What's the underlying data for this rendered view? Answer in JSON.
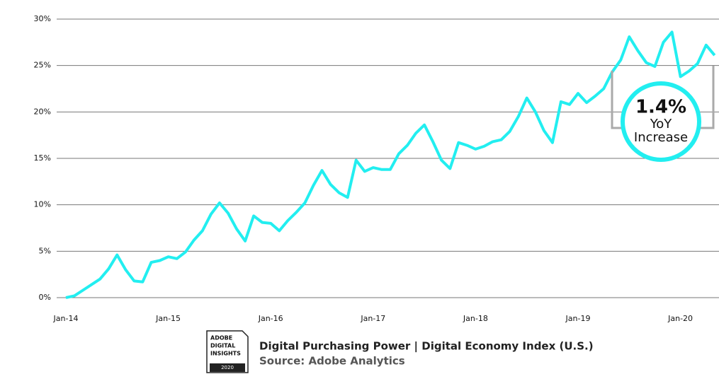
{
  "chart_data": {
    "type": "line",
    "categories": [
      "Jan-14",
      null,
      null,
      null,
      null,
      null,
      null,
      null,
      null,
      null,
      null,
      null,
      "Jan-15",
      null,
      null,
      null,
      null,
      null,
      null,
      null,
      null,
      null,
      null,
      null,
      "Jan-16",
      null,
      null,
      null,
      null,
      null,
      null,
      null,
      null,
      null,
      null,
      null,
      "Jan-17",
      null,
      null,
      null,
      null,
      null,
      null,
      null,
      null,
      null,
      null,
      null,
      "Jan-18",
      null,
      null,
      null,
      null,
      null,
      null,
      null,
      null,
      null,
      null,
      null,
      "Jan-19",
      null,
      null,
      null,
      null,
      null,
      null,
      null,
      null,
      null,
      null,
      null,
      "Jan-20",
      null,
      null,
      null,
      null
    ],
    "series": [
      {
        "color": "#22eef0",
        "values": [
          0,
          0.2,
          0.8,
          1.4,
          2.0,
          3.1,
          4.6,
          3.0,
          1.8,
          1.7,
          3.8,
          4.0,
          4.4,
          4.2,
          4.9,
          6.2,
          7.2,
          9.0,
          10.2,
          9.1,
          7.4,
          6.1,
          8.8,
          8.1,
          8.0,
          7.2,
          8.3,
          9.2,
          10.2,
          12.1,
          13.7,
          12.2,
          11.3,
          10.8,
          14.8,
          13.6,
          14.0,
          13.8,
          13.8,
          15.5,
          16.4,
          17.7,
          18.6,
          16.8,
          14.8,
          13.9,
          16.7,
          16.4,
          16.0,
          16.3,
          16.8,
          17.0,
          17.9,
          19.5,
          21.5,
          20.0,
          18.0,
          16.7,
          21.1,
          20.8,
          22.0,
          21.0,
          21.7,
          22.5,
          24.3,
          25.6,
          28.1,
          26.6,
          25.3,
          24.9,
          27.5,
          28.6,
          23.8,
          24.4,
          25.2,
          27.2,
          26.1
        ]
      }
    ],
    "ylim": [
      0,
      30
    ],
    "yticks": [
      {
        "value": 0,
        "label": "0%"
      },
      {
        "value": 5,
        "label": "5%"
      },
      {
        "value": 10,
        "label": "10%"
      },
      {
        "value": 15,
        "label": "15%"
      },
      {
        "value": 20,
        "label": "20%"
      },
      {
        "value": 25,
        "label": "25%"
      },
      {
        "value": 30,
        "label": "30%"
      }
    ],
    "grid": true,
    "annotation": [
      "1.4%",
      "YoY",
      "Increase"
    ]
  },
  "footer": {
    "badge": [
      "ADOBE",
      "DIGITAL",
      "INSIGHTS",
      "2020"
    ],
    "title": "Digital Purchasing Power | Digital Economy Index (U.S.)",
    "source": "Source: Adobe Analytics"
  }
}
